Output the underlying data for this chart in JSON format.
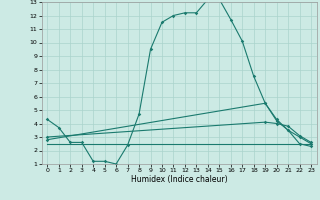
{
  "xlabel": "Humidex (Indice chaleur)",
  "bg_color": "#cceae4",
  "line_color": "#1a7a6e",
  "grid_color": "#aad4cc",
  "xlim": [
    -0.5,
    23.5
  ],
  "ylim": [
    1,
    13
  ],
  "xticks": [
    0,
    1,
    2,
    3,
    4,
    5,
    6,
    7,
    8,
    9,
    10,
    11,
    12,
    13,
    14,
    15,
    16,
    17,
    18,
    19,
    20,
    21,
    22,
    23
  ],
  "yticks": [
    1,
    2,
    3,
    4,
    5,
    6,
    7,
    8,
    9,
    10,
    11,
    12,
    13
  ],
  "line1_x": [
    0,
    1,
    2,
    3,
    4,
    5,
    6,
    7,
    8,
    9,
    10,
    11,
    12,
    13,
    14,
    15,
    16,
    17,
    18,
    19,
    20,
    21,
    22,
    23
  ],
  "line1_y": [
    4.3,
    3.7,
    2.6,
    2.6,
    1.2,
    1.2,
    1.0,
    2.4,
    4.7,
    9.5,
    11.5,
    12.0,
    12.2,
    12.2,
    13.2,
    13.2,
    11.7,
    10.1,
    7.5,
    5.5,
    4.2,
    3.5,
    2.5,
    2.3
  ],
  "line2_x": [
    0,
    23
  ],
  "line2_y": [
    2.5,
    2.5
  ],
  "line3_x": [
    0,
    19,
    20,
    21,
    22,
    23
  ],
  "line3_y": [
    2.8,
    5.5,
    4.3,
    3.5,
    3.0,
    2.5
  ],
  "line4_x": [
    0,
    19,
    20,
    21,
    22,
    23
  ],
  "line4_y": [
    3.0,
    4.1,
    4.0,
    3.8,
    3.1,
    2.6
  ]
}
